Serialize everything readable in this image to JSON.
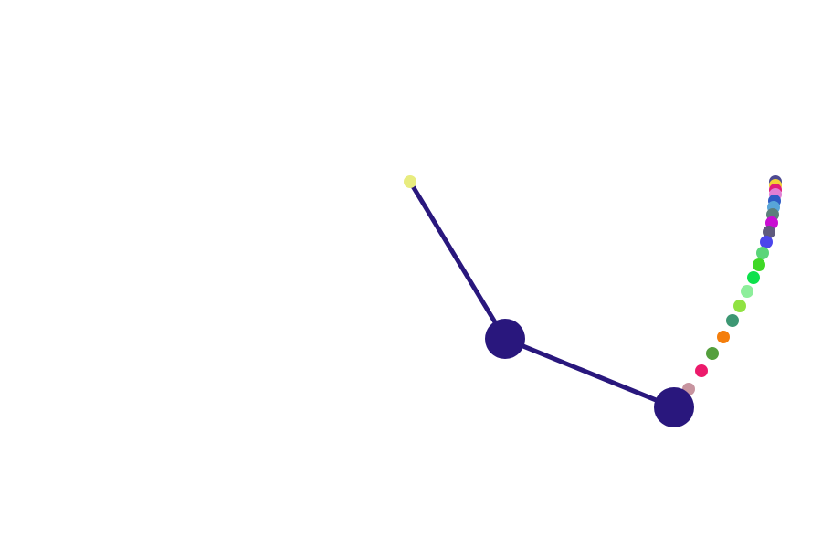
{
  "scene": {
    "background": "#ffffff",
    "rod_color": "#29177d",
    "bob_color": "#29177d",
    "pivot_color": "#e8ec7f"
  },
  "trail": {
    "colors": [
      "#c7949f",
      "#ec1a6b",
      "#549f3d",
      "#f47e0c",
      "#3d9773",
      "#90e242",
      "#8dee9b",
      "#0de14b",
      "#3fd826",
      "#5ad579",
      "#4c46ec",
      "#5f5a7e",
      "#c90dd2",
      "#5c7f7c",
      "#58a5d8",
      "#2f5bc5",
      "#e17fd4",
      "#e01c7b",
      "#f3d037",
      "#4e4a91"
    ]
  }
}
